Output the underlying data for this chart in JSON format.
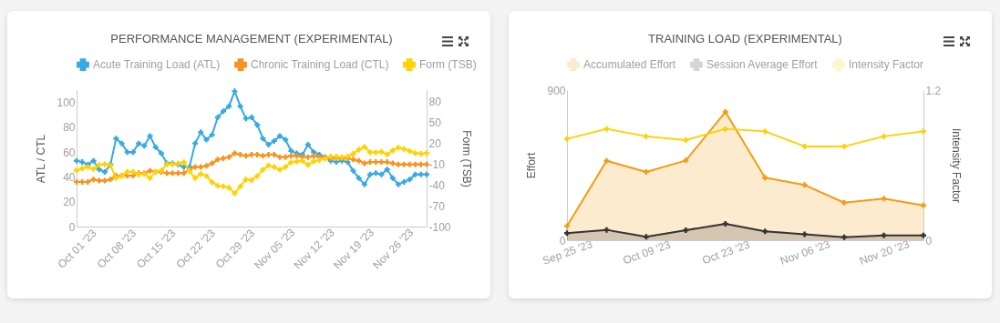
{
  "chart_data": [
    {
      "type": "line",
      "title": "PERFORMANCE MANAGEMENT (EXPERIMENTAL)",
      "ylabel": "ATL / CTL",
      "y2label": "Form (TSB)",
      "legend": "top",
      "grid": false,
      "marker": "cross",
      "x": [
        "2023-10-01",
        "2023-10-02",
        "2023-10-03",
        "2023-10-04",
        "2023-10-05",
        "2023-10-06",
        "2023-10-07",
        "2023-10-08",
        "2023-10-09",
        "2023-10-10",
        "2023-10-11",
        "2023-10-12",
        "2023-10-13",
        "2023-10-14",
        "2023-10-15",
        "2023-10-16",
        "2023-10-17",
        "2023-10-18",
        "2023-10-19",
        "2023-10-20",
        "2023-10-21",
        "2023-10-22",
        "2023-10-23",
        "2023-10-24",
        "2023-10-25",
        "2023-10-26",
        "2023-10-27",
        "2023-10-28",
        "2023-10-29",
        "2023-10-30",
        "2023-10-31",
        "2023-11-01",
        "2023-11-02",
        "2023-11-03",
        "2023-11-04",
        "2023-11-05",
        "2023-11-06",
        "2023-11-07",
        "2023-11-08",
        "2023-11-09",
        "2023-11-10",
        "2023-11-11",
        "2023-11-12",
        "2023-11-13",
        "2023-11-14",
        "2023-11-15",
        "2023-11-16",
        "2023-11-17",
        "2023-11-18",
        "2023-11-19",
        "2023-11-20",
        "2023-11-21",
        "2023-11-22",
        "2023-11-23",
        "2023-11-24",
        "2023-11-25",
        "2023-11-26",
        "2023-11-27",
        "2023-11-28",
        "2023-11-29",
        "2023-11-30",
        "2023-12-01",
        "2023-12-02"
      ],
      "xlim": [
        "2023-10-01",
        "2023-12-02"
      ],
      "xticks": [
        {
          "value": "2023-10-01",
          "label": "Oct 01 '23"
        },
        {
          "value": "2023-10-08",
          "label": "Oct 08 '23"
        },
        {
          "value": "2023-10-15",
          "label": "Oct 15 '23"
        },
        {
          "value": "2023-10-22",
          "label": "Oct 22 '23"
        },
        {
          "value": "2023-10-29",
          "label": "Oct 29 '23"
        },
        {
          "value": "2023-11-05",
          "label": "Nov 05 '23"
        },
        {
          "value": "2023-11-12",
          "label": "Nov 12 '23"
        },
        {
          "value": "2023-11-19",
          "label": "Nov 19 '23"
        },
        {
          "value": "2023-11-26",
          "label": "Nov 26 '23"
        }
      ],
      "ylim": [
        0,
        110
      ],
      "yticks": [
        0,
        20,
        40,
        60,
        80,
        100
      ],
      "y2lim": [
        -100,
        97
      ],
      "y2ticks": [
        -100,
        -70,
        -40,
        -10,
        20,
        50,
        80
      ],
      "series": [
        {
          "name": "Acute Training Load (ATL)",
          "color": "#36a9e1",
          "values": [
            53,
            52,
            50,
            53,
            46,
            44,
            50,
            71,
            67,
            60,
            60,
            67,
            65,
            73,
            64,
            59,
            51,
            51,
            50,
            48,
            48,
            67,
            76,
            70,
            74,
            88,
            93,
            97,
            109,
            97,
            87,
            88,
            82,
            71,
            66,
            69,
            73,
            70,
            61,
            59,
            58,
            66,
            60,
            58,
            56,
            53,
            52,
            53,
            52,
            45,
            39,
            34,
            42,
            43,
            42,
            46,
            39,
            34,
            36,
            38,
            42,
            42,
            42
          ]
        },
        {
          "name": "Chronic Training Load (CTL)",
          "color": "#f7931e",
          "values": [
            36,
            36,
            36,
            38,
            37,
            37,
            38,
            41,
            41,
            41,
            41,
            43,
            43,
            45,
            44,
            44,
            43,
            43,
            43,
            43,
            46,
            48,
            48,
            49,
            51,
            54,
            55,
            56,
            59,
            58,
            57,
            58,
            58,
            57,
            58,
            58,
            56,
            56,
            57,
            57,
            56,
            56,
            57,
            56,
            56,
            55,
            55,
            55,
            55,
            54,
            53,
            51,
            52,
            52,
            52,
            52,
            51,
            50,
            50,
            50,
            50,
            50,
            50
          ]
        },
        {
          "name": "Form (TSB)",
          "color": "#ffd200",
          "axis": "y2",
          "values": [
            -19,
            -16,
            -14,
            -17,
            -11,
            -10,
            -12,
            -30,
            -27,
            -21,
            -21,
            -25,
            -24,
            -30,
            -21,
            -19,
            -10,
            -10,
            -9,
            -7,
            -20,
            -30,
            -24,
            -27,
            -36,
            -41,
            -42,
            -44,
            -52,
            -42,
            -32,
            -33,
            -27,
            -18,
            -12,
            -14,
            -18,
            -14,
            -7,
            -6,
            -5,
            -11,
            -6,
            -4,
            -2,
            1,
            1,
            0,
            1,
            5,
            11,
            15,
            7,
            7,
            8,
            4,
            10,
            14,
            12,
            9,
            6,
            5,
            6
          ]
        }
      ]
    },
    {
      "type": "line",
      "title": "TRAINING LOAD (EXPERIMENTAL)",
      "ylabel": "Effort",
      "y2label": "Intensity Factor",
      "legend": "top",
      "grid": false,
      "marker": "cross",
      "x": [
        "2023-09-25",
        "2023-10-02",
        "2023-10-09",
        "2023-10-16",
        "2023-10-23",
        "2023-10-30",
        "2023-11-06",
        "2023-11-13",
        "2023-11-20",
        "2023-11-27"
      ],
      "xlim": [
        "2023-09-25",
        "2023-11-27"
      ],
      "xticks": [
        {
          "value": "2023-09-25",
          "label": "Sep 25 '23"
        },
        {
          "value": "2023-10-09",
          "label": "Oct 09 '23"
        },
        {
          "value": "2023-10-23",
          "label": "Oct 23 '23"
        },
        {
          "value": "2023-11-06",
          "label": "Nov 06 '23"
        },
        {
          "value": "2023-11-20",
          "label": "Nov 20 '23"
        }
      ],
      "ylim": [
        0,
        900
      ],
      "yticks": [
        0,
        900
      ],
      "y2lim": [
        0,
        1.2
      ],
      "y2ticks": [
        0,
        1.2
      ],
      "series": [
        {
          "name": "Accumulated Effort",
          "type": "area",
          "color": "#f39c12",
          "values": [
            85,
            476,
            409,
            478,
            769,
            375,
            331,
            225,
            249,
            209
          ]
        },
        {
          "name": "Session Average Effort",
          "type": "area",
          "color": "#333333",
          "values": [
            42,
            62,
            20,
            60,
            98,
            53,
            36,
            18,
            29,
            29
          ]
        },
        {
          "name": "Intensity Factor",
          "color": "#ffd000",
          "axis": "y2",
          "values": [
            0.81,
            0.89,
            0.83,
            0.8,
            0.89,
            0.87,
            0.75,
            0.75,
            0.83,
            0.87
          ]
        }
      ]
    }
  ]
}
